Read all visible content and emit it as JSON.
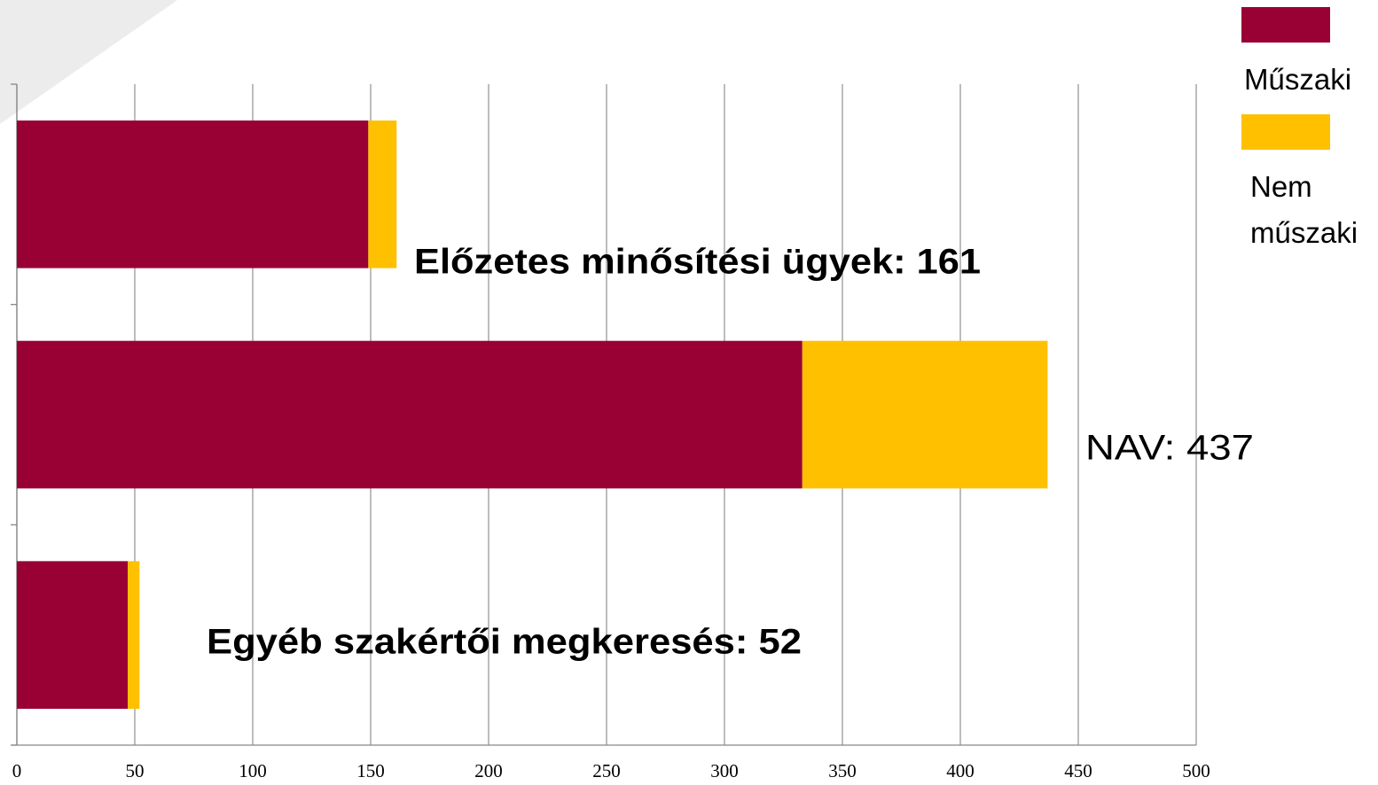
{
  "chart_data": {
    "type": "stacked_barh",
    "categories": [
      null,
      null,
      null
    ],
    "series": [
      {
        "name": "Műszaki",
        "color": "#990033",
        "values": [
          149,
          333,
          47
        ]
      },
      {
        "name": "Nem műszaki",
        "color": "#ffc000",
        "values": [
          12,
          104,
          5
        ]
      }
    ],
    "annotations": [
      "Előzetes minősítési ügyek: 161",
      "NAV: 437",
      "Egyéb szakértői megkeresés: 52"
    ],
    "xlim": [
      0,
      500
    ],
    "xticks": [
      0,
      50,
      100,
      150,
      200,
      250,
      300,
      350,
      400,
      450,
      500
    ],
    "grid": true,
    "legend": "right"
  }
}
